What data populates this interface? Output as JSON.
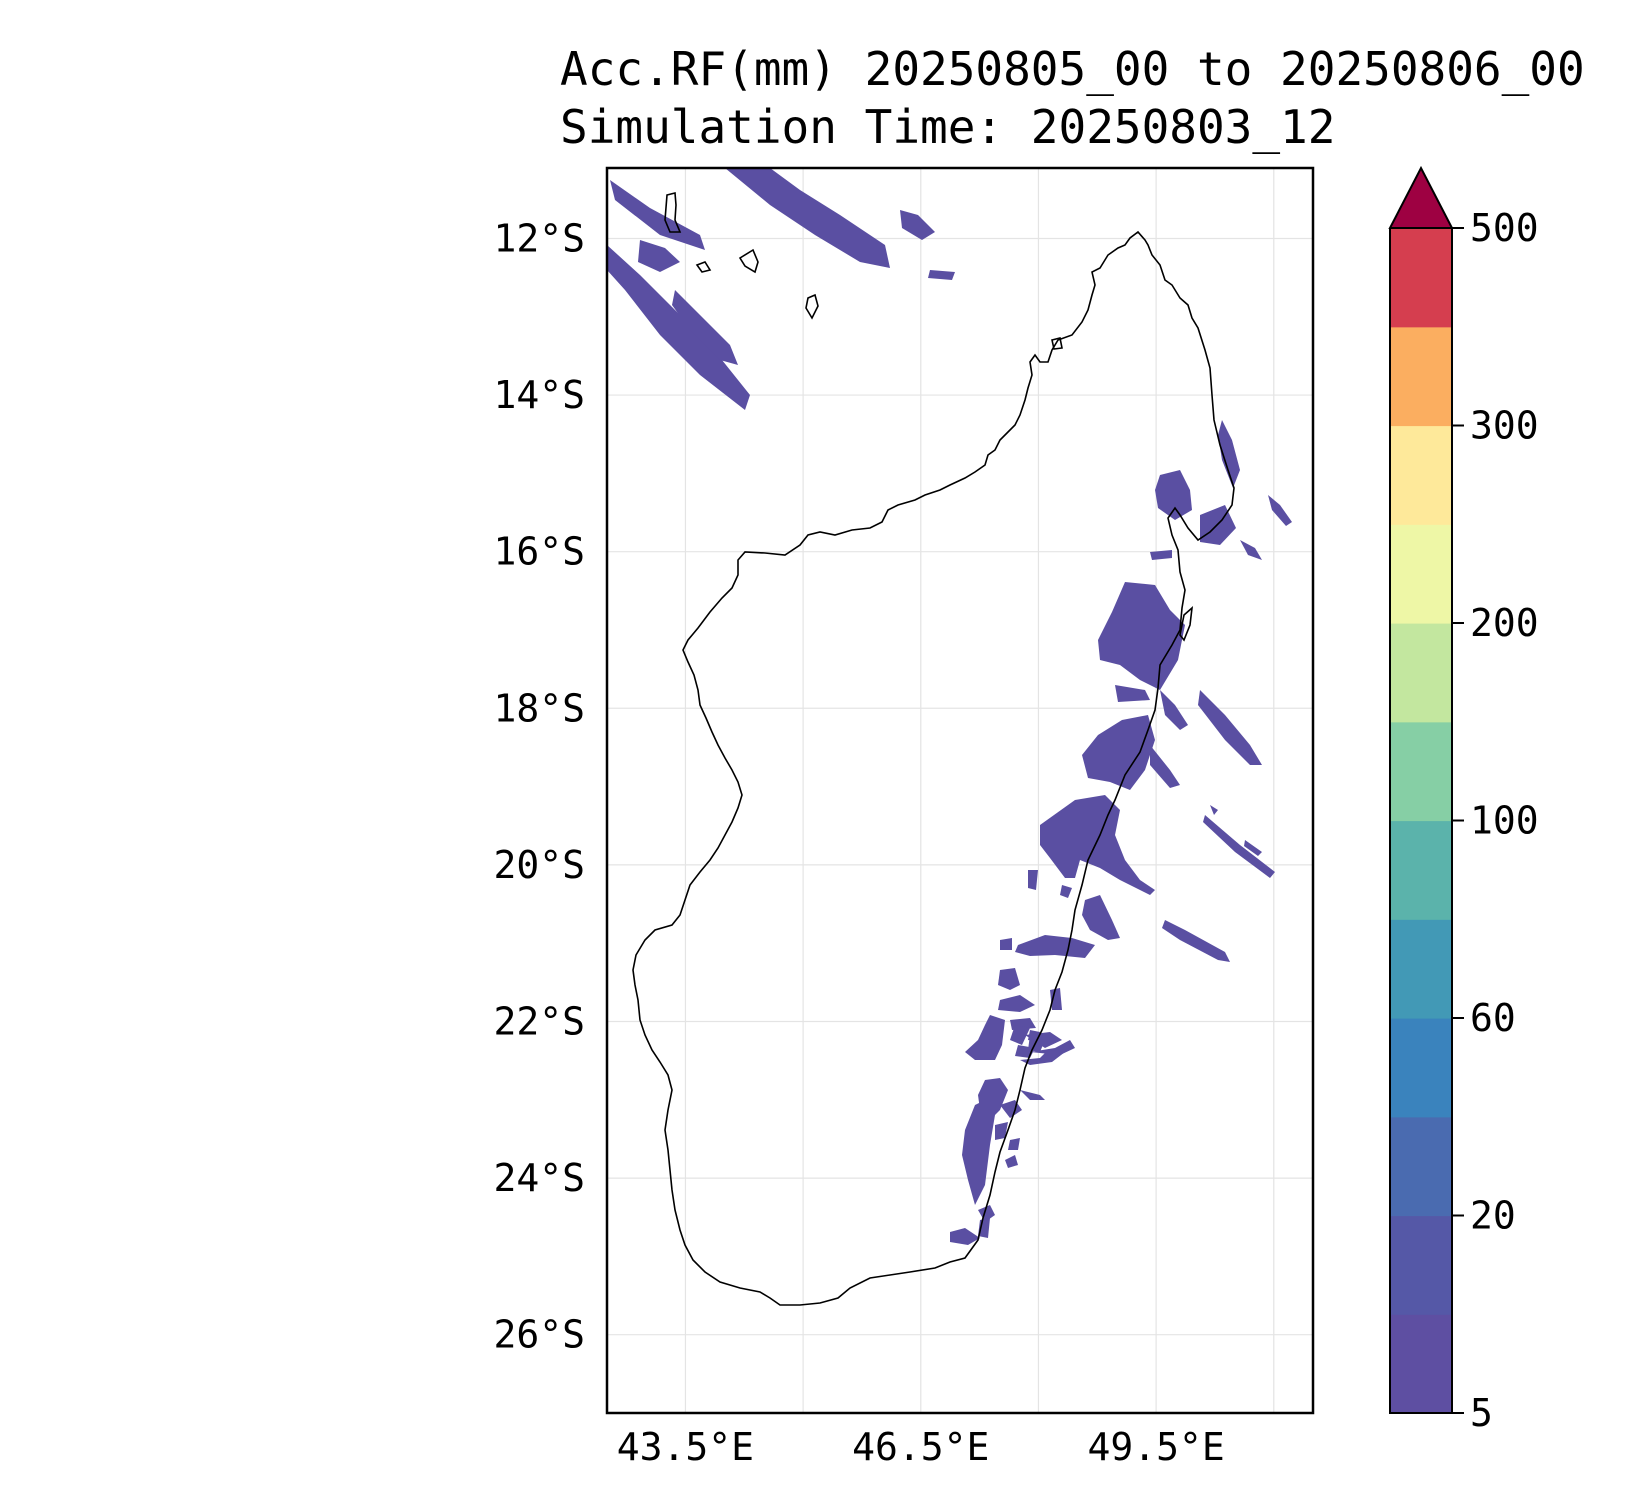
{
  "title": {
    "line1": "Acc.RF(mm) 20250805_00 to 20250806_00",
    "line2": "Simulation Time: 20250803_12"
  },
  "map": {
    "region": "Madagascar",
    "lat_range": [
      -27.0,
      -11.1
    ],
    "lon_range": [
      42.5,
      51.5
    ],
    "lat_ticks": [
      {
        "value": -12,
        "label": "12°S"
      },
      {
        "value": -14,
        "label": "14°S"
      },
      {
        "value": -16,
        "label": "16°S"
      },
      {
        "value": -18,
        "label": "18°S"
      },
      {
        "value": -20,
        "label": "20°S"
      },
      {
        "value": -22,
        "label": "22°S"
      },
      {
        "value": -24,
        "label": "24°S"
      },
      {
        "value": -26,
        "label": "26°S"
      }
    ],
    "lon_ticks": [
      {
        "value": 43.5,
        "label": "43.5°E"
      },
      {
        "value": 46.5,
        "label": "46.5°E"
      },
      {
        "value": 49.5,
        "label": "49.5°E"
      }
    ],
    "gridlines": true,
    "rain_color": "#5a4fa2"
  },
  "colorbar": {
    "extend": "max",
    "extend_color": "#9e0142",
    "bins": [
      {
        "color": "#5e4fa2"
      },
      {
        "color": "#5558a7"
      },
      {
        "color": "#4a6bb0"
      },
      {
        "color": "#3a83bd"
      },
      {
        "color": "#4299b6"
      },
      {
        "color": "#5bb3ab"
      },
      {
        "color": "#86cfa5"
      },
      {
        "color": "#c3e79f"
      },
      {
        "color": "#eef7a6"
      },
      {
        "color": "#fee99a"
      },
      {
        "color": "#fbae60"
      },
      {
        "color": "#d53e4f"
      }
    ],
    "ticks": [
      {
        "label": "5",
        "index": 0
      },
      {
        "label": "20",
        "index": 2
      },
      {
        "label": "60",
        "index": 4
      },
      {
        "label": "100",
        "index": 6
      },
      {
        "label": "200",
        "index": 8
      },
      {
        "label": "300",
        "index": 10
      },
      {
        "label": "500",
        "index": 12
      }
    ]
  }
}
